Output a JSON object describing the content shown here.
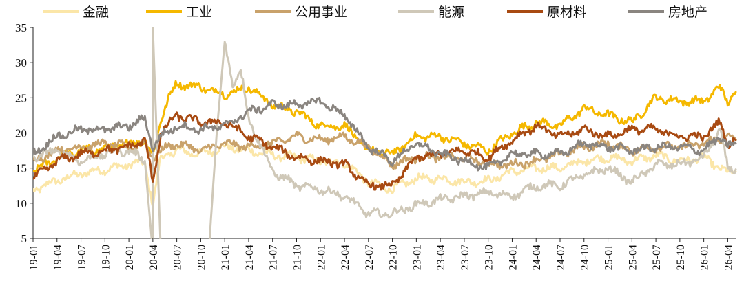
{
  "chart_data": {
    "type": "line",
    "title": "",
    "xlabel": "",
    "ylabel": "",
    "ylim": [
      5,
      35
    ],
    "yticks": [
      5,
      10,
      15,
      20,
      25,
      30,
      35
    ],
    "xticks": [
      "19-01",
      "19-04",
      "19-07",
      "19-10",
      "20-01",
      "20-04",
      "20-07",
      "20-10",
      "21-01",
      "21-04",
      "21-07",
      "21-10",
      "22-01",
      "22-04",
      "22-07",
      "22-10",
      "23-01",
      "23-04",
      "23-07",
      "23-10",
      "24-01",
      "24-04",
      "24-07",
      "24-10",
      "25-01",
      "25-04",
      "25-07",
      "25-10",
      "26-01",
      "26-04"
    ],
    "x_range": [
      "19-01",
      "26-05"
    ],
    "grid": false,
    "legend_position": "top",
    "series": [
      {
        "name": "金融",
        "color": "#FBE6A8",
        "points": [
          [
            "19-01",
            11.8
          ],
          [
            "19-04",
            13.2
          ],
          [
            "19-07",
            14.2
          ],
          [
            "19-10",
            14.8
          ],
          [
            "20-01",
            15.5
          ],
          [
            "20-03",
            15.8
          ],
          [
            "20-04",
            9.8
          ],
          [
            "20-05",
            16.5
          ],
          [
            "20-07",
            17.5
          ],
          [
            "20-10",
            17.0
          ],
          [
            "21-01",
            18.0
          ],
          [
            "21-04",
            17.5
          ],
          [
            "21-07",
            16.8
          ],
          [
            "21-10",
            16.5
          ],
          [
            "22-01",
            16.0
          ],
          [
            "22-04",
            15.8
          ],
          [
            "22-07",
            13.0
          ],
          [
            "22-10",
            12.0
          ],
          [
            "23-01",
            13.5
          ],
          [
            "23-04",
            13.5
          ],
          [
            "23-07",
            13.0
          ],
          [
            "23-10",
            13.2
          ],
          [
            "24-01",
            14.5
          ],
          [
            "24-04",
            15.0
          ],
          [
            "24-07",
            15.0
          ],
          [
            "24-10",
            16.0
          ],
          [
            "25-01",
            16.5
          ],
          [
            "25-04",
            16.0
          ],
          [
            "25-07",
            16.8
          ],
          [
            "25-10",
            16.0
          ],
          [
            "26-01",
            16.5
          ],
          [
            "26-04",
            14.3
          ],
          [
            "26-05",
            14.5
          ]
        ]
      },
      {
        "name": "工业",
        "color": "#F5B800",
        "points": [
          [
            "19-01",
            14.5
          ],
          [
            "19-04",
            16.5
          ],
          [
            "19-07",
            17.5
          ],
          [
            "19-10",
            17.8
          ],
          [
            "20-01",
            18.5
          ],
          [
            "20-03",
            19.0
          ],
          [
            "20-04",
            16.5
          ],
          [
            "20-05",
            22.0
          ],
          [
            "20-06",
            25.0
          ],
          [
            "20-07",
            27.0
          ],
          [
            "20-10",
            26.5
          ],
          [
            "21-01",
            25.5
          ],
          [
            "21-04",
            26.5
          ],
          [
            "21-07",
            24.0
          ],
          [
            "21-10",
            23.0
          ],
          [
            "22-01",
            21.0
          ],
          [
            "22-04",
            21.0
          ],
          [
            "22-07",
            17.5
          ],
          [
            "22-10",
            17.0
          ],
          [
            "23-01",
            19.5
          ],
          [
            "23-04",
            19.5
          ],
          [
            "23-07",
            18.5
          ],
          [
            "23-10",
            17.5
          ],
          [
            "24-01",
            20.0
          ],
          [
            "24-04",
            21.5
          ],
          [
            "24-07",
            21.0
          ],
          [
            "24-10",
            23.5
          ],
          [
            "25-01",
            22.5
          ],
          [
            "25-04",
            21.5
          ],
          [
            "25-07",
            25.0
          ],
          [
            "25-10",
            24.5
          ],
          [
            "26-01",
            24.5
          ],
          [
            "26-03",
            26.5
          ],
          [
            "26-04",
            24.5
          ],
          [
            "26-05",
            25.8
          ]
        ]
      },
      {
        "name": "公用事业",
        "color": "#C9A26B",
        "points": [
          [
            "19-01",
            16.0
          ],
          [
            "19-04",
            17.5
          ],
          [
            "19-07",
            18.0
          ],
          [
            "19-10",
            18.5
          ],
          [
            "20-01",
            18.0
          ],
          [
            "20-03",
            18.5
          ],
          [
            "20-04",
            16.5
          ],
          [
            "20-05",
            17.5
          ],
          [
            "20-07",
            18.5
          ],
          [
            "20-10",
            17.5
          ],
          [
            "21-01",
            18.5
          ],
          [
            "21-04",
            18.0
          ],
          [
            "21-07",
            18.5
          ],
          [
            "21-10",
            19.5
          ],
          [
            "22-01",
            19.0
          ],
          [
            "22-04",
            19.5
          ],
          [
            "22-07",
            18.0
          ],
          [
            "22-10",
            15.5
          ],
          [
            "23-01",
            16.5
          ],
          [
            "23-04",
            16.5
          ],
          [
            "23-07",
            16.5
          ],
          [
            "23-10",
            15.5
          ],
          [
            "24-01",
            15.5
          ],
          [
            "24-04",
            16.0
          ],
          [
            "24-07",
            17.0
          ],
          [
            "24-10",
            18.0
          ],
          [
            "25-01",
            18.5
          ],
          [
            "25-04",
            17.5
          ],
          [
            "25-07",
            18.0
          ],
          [
            "25-10",
            18.0
          ],
          [
            "26-01",
            18.5
          ],
          [
            "26-04",
            19.5
          ],
          [
            "26-05",
            19.0
          ]
        ]
      },
      {
        "name": "能源",
        "color": "#CFC8B8",
        "points": [
          [
            "19-01",
            16.5
          ],
          [
            "19-04",
            17.5
          ],
          [
            "19-07",
            16.0
          ],
          [
            "19-10",
            17.0
          ],
          [
            "20-01",
            17.5
          ],
          [
            "20-03",
            16.0
          ],
          [
            "20-04",
            3.0
          ],
          [
            "20-04",
            35.0
          ],
          [
            "20-05",
            3.0
          ],
          [
            "20-11",
            3.0
          ],
          [
            "20-12",
            20.0
          ],
          [
            "21-01",
            33.0
          ],
          [
            "21-02",
            27.0
          ],
          [
            "21-03",
            29.0
          ],
          [
            "21-04",
            22.0
          ],
          [
            "21-07",
            14.5
          ],
          [
            "21-10",
            12.5
          ],
          [
            "22-01",
            12.0
          ],
          [
            "22-04",
            11.0
          ],
          [
            "22-07",
            8.5
          ],
          [
            "22-10",
            8.5
          ],
          [
            "23-01",
            9.8
          ],
          [
            "23-04",
            10.5
          ],
          [
            "23-07",
            11.0
          ],
          [
            "23-10",
            11.5
          ],
          [
            "24-01",
            11.0
          ],
          [
            "24-04",
            12.5
          ],
          [
            "24-07",
            12.5
          ],
          [
            "24-10",
            14.0
          ],
          [
            "25-01",
            15.0
          ],
          [
            "25-04",
            13.0
          ],
          [
            "25-07",
            15.5
          ],
          [
            "25-10",
            15.5
          ],
          [
            "26-01",
            16.5
          ],
          [
            "26-03",
            20.5
          ],
          [
            "26-04",
            15.0
          ],
          [
            "26-05",
            14.8
          ]
        ]
      },
      {
        "name": "原材料",
        "color": "#A84A12",
        "points": [
          [
            "19-01",
            13.5
          ],
          [
            "19-04",
            16.0
          ],
          [
            "19-07",
            17.0
          ],
          [
            "19-10",
            17.5
          ],
          [
            "20-01",
            18.0
          ],
          [
            "20-03",
            19.0
          ],
          [
            "20-04",
            13.0
          ],
          [
            "20-05",
            20.0
          ],
          [
            "20-07",
            22.5
          ],
          [
            "20-10",
            21.5
          ],
          [
            "21-01",
            21.5
          ],
          [
            "21-04",
            19.5
          ],
          [
            "21-07",
            18.0
          ],
          [
            "21-10",
            16.5
          ],
          [
            "22-01",
            16.0
          ],
          [
            "22-04",
            15.5
          ],
          [
            "22-07",
            12.5
          ],
          [
            "22-10",
            12.5
          ],
          [
            "23-01",
            16.5
          ],
          [
            "23-04",
            17.0
          ],
          [
            "23-07",
            17.5
          ],
          [
            "23-10",
            16.5
          ],
          [
            "24-01",
            19.0
          ],
          [
            "24-04",
            21.0
          ],
          [
            "24-07",
            19.5
          ],
          [
            "24-10",
            20.5
          ],
          [
            "25-01",
            19.5
          ],
          [
            "25-04",
            20.5
          ],
          [
            "25-07",
            20.5
          ],
          [
            "25-10",
            19.5
          ],
          [
            "26-01",
            19.5
          ],
          [
            "26-03",
            21.5
          ],
          [
            "26-04",
            18.5
          ],
          [
            "26-05",
            19.0
          ]
        ]
      },
      {
        "name": "房地产",
        "color": "#8A8580",
        "points": [
          [
            "19-01",
            17.0
          ],
          [
            "19-04",
            19.5
          ],
          [
            "19-07",
            20.5
          ],
          [
            "19-10",
            20.5
          ],
          [
            "20-01",
            21.0
          ],
          [
            "20-03",
            22.0
          ],
          [
            "20-04",
            18.0
          ],
          [
            "20-05",
            19.5
          ],
          [
            "20-07",
            21.0
          ],
          [
            "20-10",
            20.5
          ],
          [
            "21-01",
            21.0
          ],
          [
            "21-04",
            23.0
          ],
          [
            "21-07",
            24.0
          ],
          [
            "21-10",
            24.0
          ],
          [
            "22-01",
            24.5
          ],
          [
            "22-04",
            22.5
          ],
          [
            "22-07",
            18.0
          ],
          [
            "22-10",
            16.0
          ],
          [
            "23-01",
            18.5
          ],
          [
            "23-04",
            17.0
          ],
          [
            "23-07",
            16.0
          ],
          [
            "23-10",
            15.0
          ],
          [
            "24-01",
            17.0
          ],
          [
            "24-04",
            17.0
          ],
          [
            "24-07",
            17.0
          ],
          [
            "24-10",
            18.5
          ],
          [
            "25-01",
            18.0
          ],
          [
            "25-04",
            17.5
          ],
          [
            "25-07",
            18.0
          ],
          [
            "25-10",
            18.0
          ],
          [
            "26-01",
            17.5
          ],
          [
            "26-03",
            19.5
          ],
          [
            "26-04",
            18.0
          ],
          [
            "26-05",
            18.5
          ]
        ]
      }
    ]
  }
}
